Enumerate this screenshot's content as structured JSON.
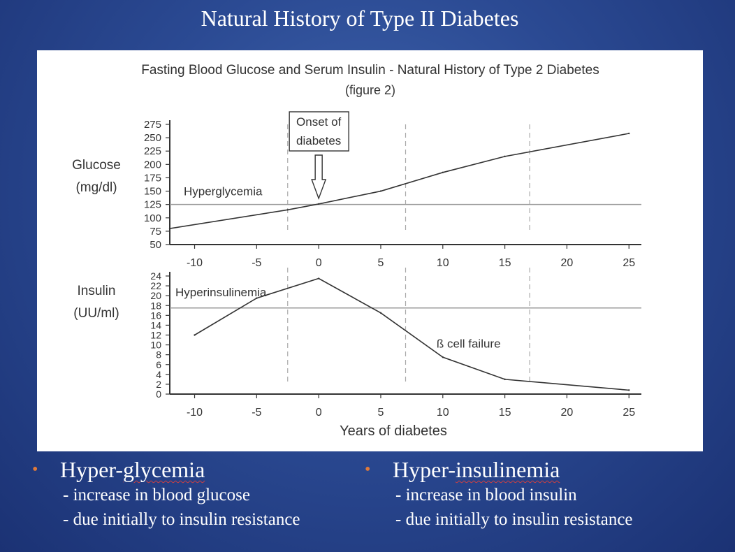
{
  "slide": {
    "title": "Natural History of Type II Diabetes"
  },
  "chart_data": [
    {
      "type": "line",
      "panel": "top",
      "title": "Fasting Blood Glucose and Serum Insulin - Natural History of Type 2 Diabetes",
      "subtitle": "(figure 2)",
      "ylabel_lines": [
        "Glucose",
        "(mg/dl)"
      ],
      "xlabel": "",
      "x_ticks": [
        -10,
        -5,
        0,
        5,
        10,
        15,
        20,
        25
      ],
      "y_ticks": [
        50,
        75,
        100,
        125,
        150,
        175,
        200,
        225,
        250,
        275
      ],
      "xlim": [
        -12,
        26
      ],
      "ylim": [
        50,
        275
      ],
      "x": [
        -12,
        -2.5,
        0,
        5,
        10,
        15,
        25
      ],
      "values": [
        80,
        115,
        126,
        150,
        185,
        215,
        258
      ],
      "threshold": {
        "value": 125,
        "label": "Hyperglycemia"
      },
      "annotation": {
        "lines": [
          "Onset of",
          "diabetes"
        ],
        "x": 0
      },
      "vlines": [
        -2.5,
        7,
        17
      ]
    },
    {
      "type": "line",
      "panel": "bottom",
      "ylabel_lines": [
        "Insulin",
        "(UU/ml)"
      ],
      "xlabel": "Years of diabetes",
      "x_ticks": [
        -10,
        -5,
        0,
        5,
        10,
        15,
        20,
        25
      ],
      "y_ticks": [
        0,
        2,
        4,
        6,
        8,
        10,
        12,
        14,
        16,
        18,
        20,
        22,
        24
      ],
      "xlim": [
        -12,
        26
      ],
      "ylim": [
        0,
        24
      ],
      "x": [
        -10,
        -5,
        0,
        5,
        10,
        15,
        25
      ],
      "values": [
        12,
        19.5,
        23.5,
        16.5,
        7.5,
        3,
        0.8
      ],
      "threshold": {
        "value": 17.5,
        "label": "Hyperinsulinemia"
      },
      "annotation": {
        "text": "ß cell failure",
        "x": 9.5,
        "y": 10
      },
      "vlines": [
        -2.5,
        7,
        17
      ]
    }
  ],
  "bullets": [
    {
      "head_prefix": "Hyper-",
      "head_word": "glycemia",
      "subs": [
        "- increase in blood glucose",
        "- due initially to insulin resistance"
      ]
    },
    {
      "head_prefix": "Hyper-",
      "head_word": "insulinemia",
      "subs": [
        "- increase in blood insulin",
        "- due initially to insulin resistance"
      ]
    }
  ],
  "colors": {
    "background": "#2b4a93",
    "bullet": "#e07a3a",
    "text": "#ffffff",
    "line": "#333333",
    "threshold": "#999999",
    "dashed": "#aaaaaa"
  }
}
